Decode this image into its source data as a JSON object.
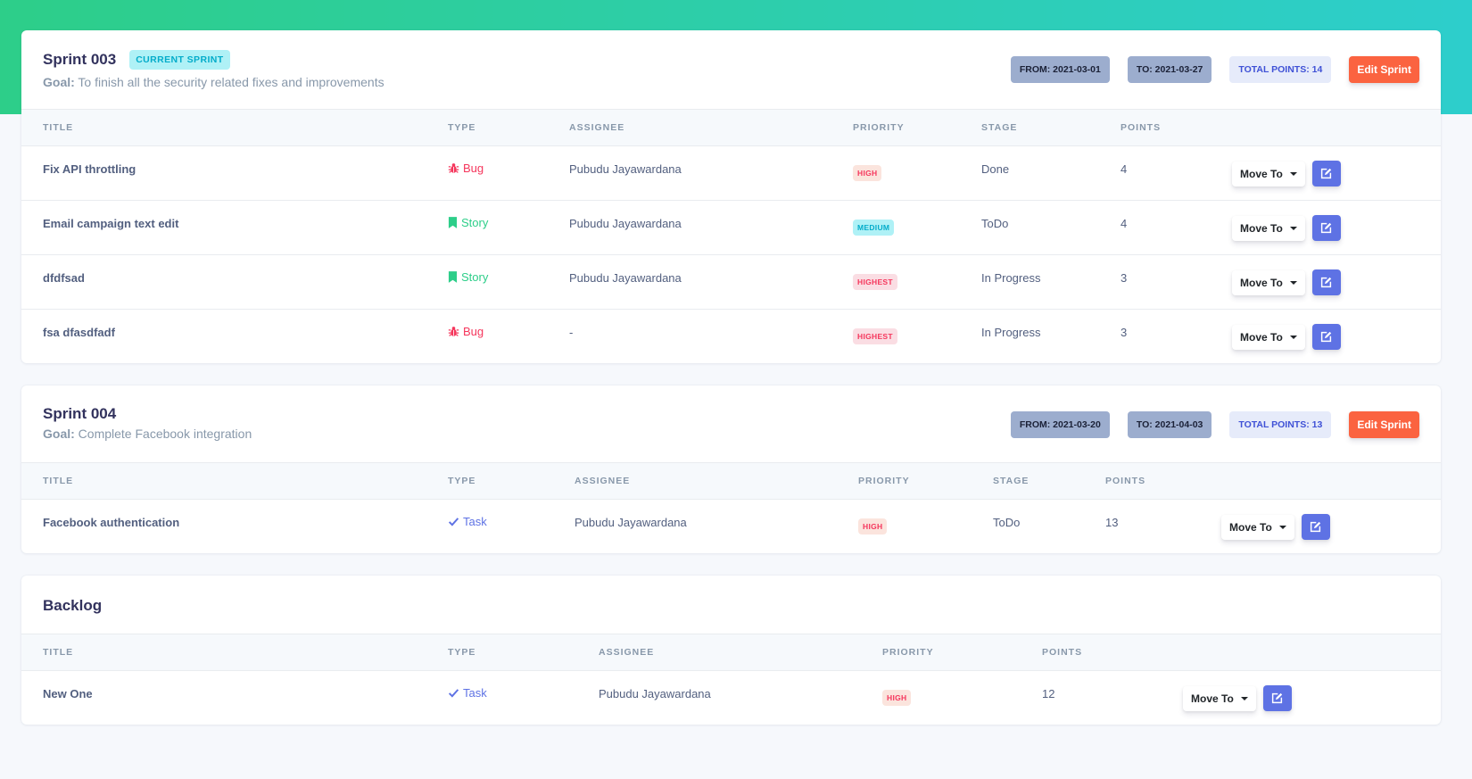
{
  "columns": {
    "title": "TITLE",
    "type": "TYPE",
    "assignee": "ASSIGNEE",
    "priority": "PRIORITY",
    "stage": "STAGE",
    "points": "POINTS"
  },
  "actions": {
    "move_to_label": "Move To",
    "edit_sprint_label": "Edit Sprint"
  },
  "colors": {
    "gradient_start": "#2dce89",
    "gradient_end": "#2dcecc",
    "primary": "#5e72e4",
    "warning": "#fb6340",
    "danger": "#f5365c",
    "success": "#2dce89",
    "info": "#11cdef"
  },
  "sprints": [
    {
      "name": "Sprint 003",
      "badge": "CURRENT SPRINT",
      "goal_label": "Goal:",
      "goal_text": "To finish all the security related fixes and improvements",
      "from": "FROM: 2021-03-01",
      "to": "TO: 2021-03-27",
      "total": "TOTAL POINTS: 14",
      "issues": [
        {
          "title": "Fix API throttling",
          "type": "Bug",
          "type_icon": "bug-icon",
          "assignee": "Pubudu Jayawardana",
          "priority": "HIGH",
          "stage": "Done",
          "points": "4"
        },
        {
          "title": "Email campaign text edit",
          "type": "Story",
          "type_icon": "bookmark-icon",
          "assignee": "Pubudu Jayawardana",
          "priority": "MEDIUM",
          "stage": "ToDo",
          "points": "4"
        },
        {
          "title": "dfdfsad",
          "type": "Story",
          "type_icon": "bookmark-icon",
          "assignee": "Pubudu Jayawardana",
          "priority": "HIGHEST",
          "stage": "In Progress",
          "points": "3"
        },
        {
          "title": "fsa dfasdfadf",
          "type": "Bug",
          "type_icon": "bug-icon",
          "assignee": "-",
          "priority": "HIGHEST",
          "stage": "In Progress",
          "points": "3"
        }
      ]
    },
    {
      "name": "Sprint 004",
      "goal_label": "Goal:",
      "goal_text": "Complete Facebook integration",
      "from": "FROM: 2021-03-20",
      "to": "TO: 2021-04-03",
      "total": "TOTAL POINTS: 13",
      "issues": [
        {
          "title": "Facebook authentication",
          "type": "Task",
          "type_icon": "check-icon",
          "assignee": "Pubudu Jayawardana",
          "priority": "HIGH",
          "stage": "ToDo",
          "points": "13"
        }
      ]
    }
  ],
  "backlog": {
    "title": "Backlog",
    "issues": [
      {
        "title": "New One",
        "type": "Task",
        "type_icon": "check-icon",
        "assignee": "Pubudu Jayawardana",
        "priority": "HIGH",
        "points": "12"
      }
    ]
  }
}
